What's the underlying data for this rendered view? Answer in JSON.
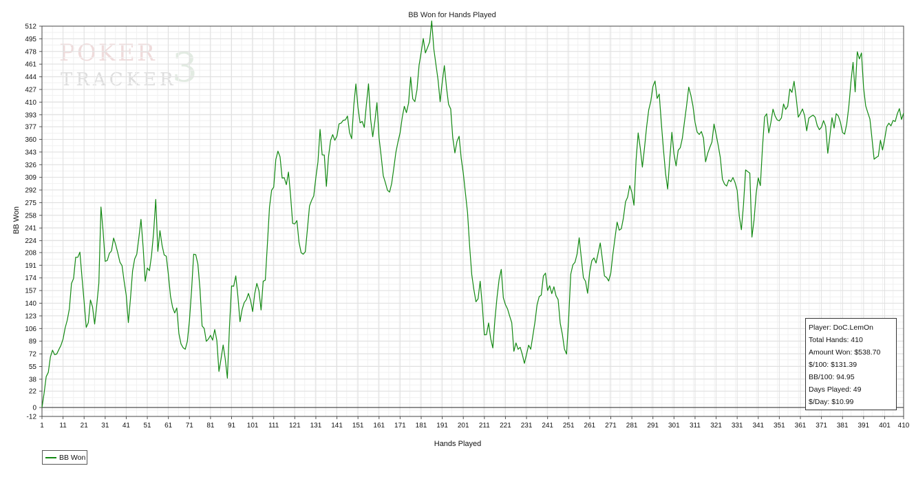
{
  "chart_data": {
    "type": "line",
    "title": "BB Won for Hands Played",
    "xlabel": "Hands Played",
    "ylabel": "BB Won",
    "xlim": [
      1,
      410
    ],
    "ylim": [
      -12,
      512
    ],
    "x_ticks": [
      1,
      11,
      21,
      31,
      41,
      51,
      61,
      71,
      81,
      91,
      101,
      111,
      121,
      131,
      141,
      151,
      161,
      171,
      181,
      191,
      201,
      211,
      221,
      231,
      241,
      251,
      261,
      271,
      281,
      291,
      301,
      311,
      321,
      331,
      341,
      351,
      361,
      371,
      381,
      391,
      401,
      410
    ],
    "y_ticks": [
      -12,
      0,
      22,
      38,
      55,
      72,
      89,
      106,
      123,
      140,
      157,
      174,
      191,
      208,
      224,
      241,
      258,
      275,
      292,
      309,
      326,
      343,
      360,
      377,
      393,
      410,
      427,
      444,
      461,
      478,
      495,
      512
    ],
    "grid": true,
    "legend_position": "bottom-left",
    "series": [
      {
        "name": "BB Won",
        "color": "#118811",
        "anchors": [
          [
            1,
            0
          ],
          [
            3,
            38
          ],
          [
            5,
            65
          ],
          [
            8,
            68
          ],
          [
            9,
            85
          ],
          [
            10,
            75
          ],
          [
            13,
            112
          ],
          [
            15,
            160
          ],
          [
            17,
            200
          ],
          [
            19,
            215
          ],
          [
            20,
            168
          ],
          [
            22,
            100
          ],
          [
            24,
            145
          ],
          [
            26,
            115
          ],
          [
            28,
            170
          ],
          [
            29,
            260
          ],
          [
            31,
            198
          ],
          [
            33,
            200
          ],
          [
            35,
            235
          ],
          [
            37,
            210
          ],
          [
            39,
            180
          ],
          [
            40,
            170
          ],
          [
            42,
            120
          ],
          [
            44,
            175
          ],
          [
            46,
            210
          ],
          [
            48,
            245
          ],
          [
            50,
            178
          ],
          [
            53,
            200
          ],
          [
            55,
            275
          ],
          [
            56,
            215
          ],
          [
            57,
            240
          ],
          [
            58,
            220
          ],
          [
            61,
            180
          ],
          [
            63,
            140
          ],
          [
            65,
            130
          ],
          [
            67,
            90
          ],
          [
            69,
            80
          ],
          [
            71,
            110
          ],
          [
            73,
            205
          ],
          [
            75,
            190
          ],
          [
            77,
            120
          ],
          [
            79,
            90
          ],
          [
            82,
            95
          ],
          [
            83,
            105
          ],
          [
            85,
            55
          ],
          [
            87,
            75
          ],
          [
            89,
            50
          ],
          [
            91,
            160
          ],
          [
            93,
            170
          ],
          [
            95,
            120
          ],
          [
            97,
            130
          ],
          [
            99,
            160
          ],
          [
            101,
            125
          ],
          [
            103,
            165
          ],
          [
            105,
            140
          ],
          [
            107,
            180
          ],
          [
            109,
            270
          ],
          [
            111,
            300
          ],
          [
            113,
            350
          ],
          [
            115,
            310
          ],
          [
            117,
            310
          ],
          [
            118,
            320
          ],
          [
            120,
            240
          ],
          [
            122,
            240
          ],
          [
            124,
            200
          ],
          [
            126,
            220
          ],
          [
            128,
            270
          ],
          [
            130,
            280
          ],
          [
            132,
            330
          ],
          [
            133,
            370
          ],
          [
            134,
            330
          ],
          [
            135,
            335
          ],
          [
            136,
            305
          ],
          [
            138,
            365
          ],
          [
            140,
            360
          ],
          [
            143,
            385
          ],
          [
            146,
            395
          ],
          [
            148,
            360
          ],
          [
            150,
            430
          ],
          [
            152,
            375
          ],
          [
            154,
            380
          ],
          [
            156,
            435
          ],
          [
            158,
            355
          ],
          [
            160,
            420
          ],
          [
            161,
            360
          ],
          [
            163,
            320
          ],
          [
            165,
            300
          ],
          [
            167,
            295
          ],
          [
            170,
            360
          ],
          [
            172,
            390
          ],
          [
            174,
            400
          ],
          [
            176,
            435
          ],
          [
            178,
            400
          ],
          [
            180,
            465
          ],
          [
            182,
            485
          ],
          [
            184,
            478
          ],
          [
            186,
            512
          ],
          [
            188,
            460
          ],
          [
            190,
            410
          ],
          [
            192,
            455
          ],
          [
            195,
            395
          ],
          [
            197,
            350
          ],
          [
            199,
            365
          ],
          [
            201,
            310
          ],
          [
            203,
            260
          ],
          [
            205,
            180
          ],
          [
            207,
            140
          ],
          [
            209,
            160
          ],
          [
            211,
            95
          ],
          [
            213,
            105
          ],
          [
            215,
            90
          ],
          [
            217,
            150
          ],
          [
            219,
            175
          ],
          [
            221,
            140
          ],
          [
            223,
            130
          ],
          [
            225,
            80
          ],
          [
            228,
            70
          ],
          [
            230,
            60
          ],
          [
            232,
            75
          ],
          [
            234,
            90
          ],
          [
            236,
            135
          ],
          [
            238,
            160
          ],
          [
            240,
            175
          ],
          [
            242,
            160
          ],
          [
            244,
            155
          ],
          [
            246,
            135
          ],
          [
            248,
            90
          ],
          [
            250,
            80
          ],
          [
            252,
            170
          ],
          [
            254,
            200
          ],
          [
            256,
            220
          ],
          [
            258,
            170
          ],
          [
            260,
            160
          ],
          [
            262,
            190
          ],
          [
            264,
            200
          ],
          [
            266,
            230
          ],
          [
            268,
            180
          ],
          [
            270,
            170
          ],
          [
            272,
            210
          ],
          [
            274,
            240
          ],
          [
            276,
            250
          ],
          [
            278,
            270
          ],
          [
            280,
            295
          ],
          [
            282,
            280
          ],
          [
            284,
            370
          ],
          [
            286,
            320
          ],
          [
            288,
            385
          ],
          [
            290,
            410
          ],
          [
            292,
            440
          ],
          [
            294,
            410
          ],
          [
            296,
            340
          ],
          [
            298,
            300
          ],
          [
            300,
            360
          ],
          [
            302,
            325
          ],
          [
            304,
            345
          ],
          [
            306,
            380
          ],
          [
            308,
            430
          ],
          [
            310,
            400
          ],
          [
            312,
            375
          ],
          [
            314,
            378
          ],
          [
            316,
            330
          ],
          [
            318,
            360
          ],
          [
            320,
            370
          ],
          [
            322,
            350
          ],
          [
            324,
            300
          ],
          [
            326,
            290
          ],
          [
            328,
            300
          ],
          [
            330,
            310
          ],
          [
            332,
            260
          ],
          [
            333,
            235
          ],
          [
            335,
            310
          ],
          [
            337,
            325
          ],
          [
            338,
            225
          ],
          [
            340,
            295
          ],
          [
            342,
            300
          ],
          [
            344,
            400
          ],
          [
            346,
            370
          ],
          [
            348,
            390
          ],
          [
            350,
            380
          ],
          [
            352,
            395
          ],
          [
            354,
            410
          ],
          [
            356,
            420
          ],
          [
            358,
            430
          ],
          [
            360,
            395
          ],
          [
            362,
            410
          ],
          [
            364,
            370
          ],
          [
            366,
            400
          ],
          [
            368,
            395
          ],
          [
            370,
            380
          ],
          [
            372,
            390
          ],
          [
            374,
            350
          ],
          [
            376,
            380
          ],
          [
            378,
            390
          ],
          [
            380,
            385
          ],
          [
            382,
            375
          ],
          [
            384,
            400
          ],
          [
            386,
            460
          ],
          [
            387,
            430
          ],
          [
            388,
            478
          ],
          [
            390,
            470
          ],
          [
            392,
            410
          ],
          [
            394,
            390
          ],
          [
            396,
            335
          ],
          [
            397,
            345
          ],
          [
            399,
            350
          ],
          [
            401,
            360
          ],
          [
            403,
            375
          ],
          [
            405,
            395
          ],
          [
            407,
            385
          ],
          [
            408,
            395
          ],
          [
            410,
            385
          ]
        ]
      }
    ]
  },
  "stats": {
    "player": "Player: DoC.LemOn",
    "total_hands": "Total Hands: 410",
    "amount_won": "Amount Won: $538.70",
    "per_100": "$/100: $131.39",
    "bb_per_100": "BB/100: 94.95",
    "days_played": "Days Played: 49",
    "per_day": "$/Day: $10.99"
  },
  "watermark": {
    "line1": "POKER",
    "line2": "TRACKER",
    "numeral": "3"
  }
}
